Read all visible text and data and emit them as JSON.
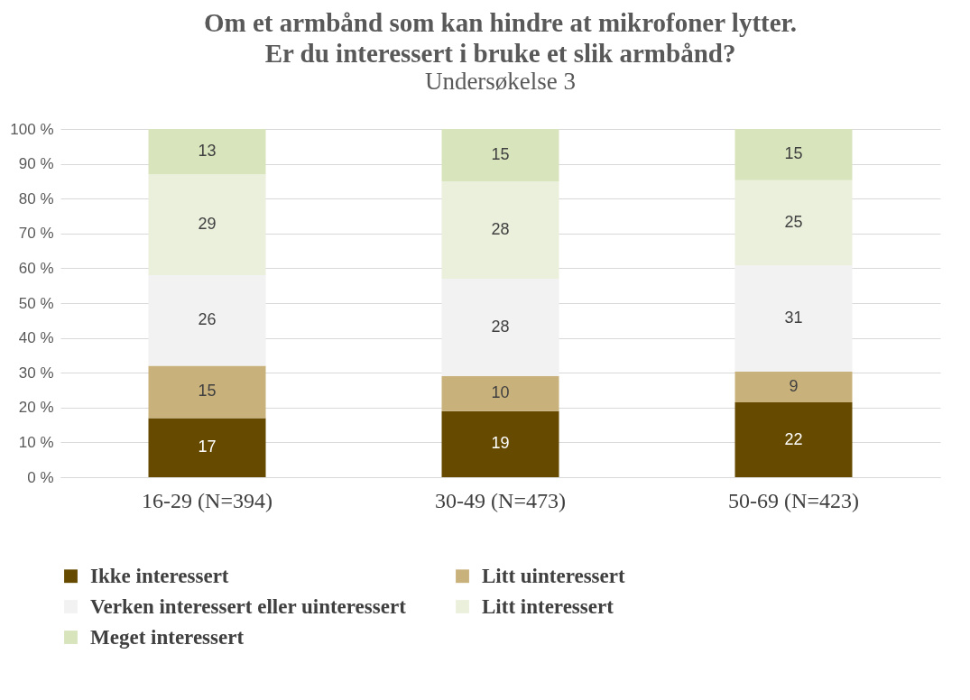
{
  "chart_data": {
    "type": "bar",
    "title": "Om et armbånd som kan hindre at mikrofoner lytter.\nEr du interessert i bruke et slik armbånd?",
    "subtitle": "Undersøkelse 3",
    "categories": [
      "16-29 (N=394)",
      "30-49 (N=473)",
      "50-69 (N=423)"
    ],
    "stacked": true,
    "series": [
      {
        "name": "Ikke interessert",
        "color": "#664a00",
        "values": [
          17,
          19,
          21.5
        ],
        "value_labels": [
          "17",
          "19",
          "22"
        ]
      },
      {
        "name": "Litt uinteressert",
        "color": "#c9b17c",
        "values": [
          15,
          10,
          8.8
        ],
        "value_labels": [
          "15",
          "10",
          "9"
        ]
      },
      {
        "name": "Verken interessert eller uinteressert",
        "color": "#f2f2f2",
        "values": [
          26,
          28,
          30.5
        ],
        "value_labels": [
          "26",
          "28",
          "31"
        ]
      },
      {
        "name": "Litt interessert",
        "color": "#ebf0dd",
        "values": [
          29,
          28,
          24.5
        ],
        "value_labels": [
          "29",
          "28",
          "25"
        ]
      },
      {
        "name": "Meget interessert",
        "color": "#d7e4bc",
        "values": [
          13,
          15,
          14.7
        ],
        "value_labels": [
          "13",
          "15",
          "15"
        ]
      }
    ],
    "ylim": [
      0,
      100
    ],
    "yticks": [
      {
        "value": 0,
        "label": "0 %"
      },
      {
        "value": 10,
        "label": "10 %"
      },
      {
        "value": 20,
        "label": "20 %"
      },
      {
        "value": 30,
        "label": "30 %"
      },
      {
        "value": 40,
        "label": "40 %"
      },
      {
        "value": 50,
        "label": "50 %"
      },
      {
        "value": 60,
        "label": "60 %"
      },
      {
        "value": 70,
        "label": "70 %"
      },
      {
        "value": 80,
        "label": "80 %"
      },
      {
        "value": 90,
        "label": "90 %"
      },
      {
        "value": 100,
        "label": "100 %"
      }
    ],
    "grid": "y",
    "legend": "bottom"
  }
}
